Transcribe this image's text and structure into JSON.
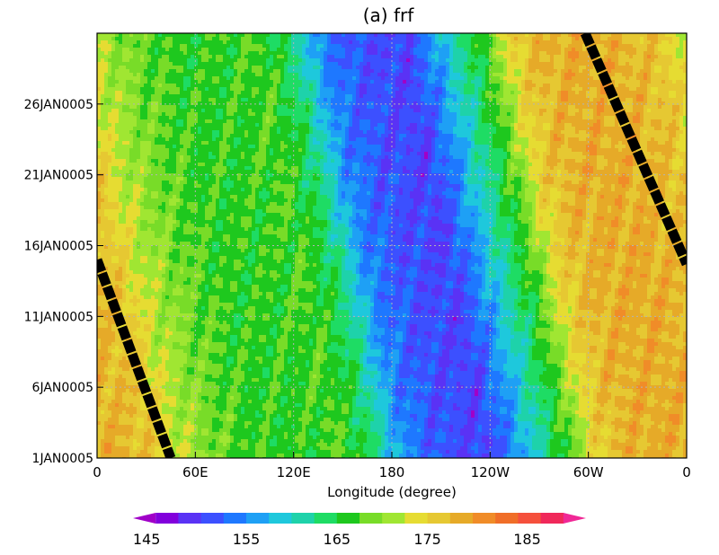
{
  "chart_data": {
    "type": "heatmap",
    "title": "(a) frf",
    "xlabel": "Longitude (degree)",
    "ylabel": "",
    "x_ticks": [
      {
        "lon": 0,
        "label": "0"
      },
      {
        "lon": 60,
        "label": "60E"
      },
      {
        "lon": 120,
        "label": "120E"
      },
      {
        "lon": 180,
        "label": "180"
      },
      {
        "lon": 240,
        "label": "120W"
      },
      {
        "lon": 300,
        "label": "60W"
      },
      {
        "lon": 360,
        "label": "0"
      }
    ],
    "y_ticks": [
      {
        "day": 1,
        "label": "1JAN0005"
      },
      {
        "day": 6,
        "label": "6JAN0005"
      },
      {
        "day": 11,
        "label": "11JAN0005"
      },
      {
        "day": 16,
        "label": "16JAN0005"
      },
      {
        "day": 21,
        "label": "21JAN0005"
      },
      {
        "day": 26,
        "label": "26JAN0005"
      }
    ],
    "xlim": [
      0,
      360
    ],
    "ylim": [
      1,
      31
    ],
    "grid": true,
    "colorbar": {
      "min": 145,
      "max": 185,
      "step": 2.5,
      "tick_labels": [
        "145",
        "155",
        "165",
        "175",
        "185"
      ],
      "tick_values": [
        145,
        155,
        165,
        175,
        185
      ],
      "colors": [
        "#a000c8",
        "#8200dc",
        "#5a32f5",
        "#3c50ff",
        "#1e78ff",
        "#1ea0f5",
        "#1ec8dc",
        "#1ed2aa",
        "#1edc64",
        "#1ec81e",
        "#78dc28",
        "#a0e632",
        "#e6dc32",
        "#e6c832",
        "#e6aa28",
        "#f08c28",
        "#f06e28",
        "#f5503c",
        "#f0285a",
        "#f02896"
      ]
    },
    "profile": [
      {
        "lon": 0,
        "value": 176
      },
      {
        "lon": 20,
        "value": 175
      },
      {
        "lon": 35,
        "value": 174
      },
      {
        "lon": 50,
        "value": 170
      },
      {
        "lon": 75,
        "value": 166
      },
      {
        "lon": 100,
        "value": 164
      },
      {
        "lon": 130,
        "value": 164
      },
      {
        "lon": 150,
        "value": 165
      },
      {
        "lon": 170,
        "value": 161
      },
      {
        "lon": 190,
        "value": 152
      },
      {
        "lon": 210,
        "value": 149
      },
      {
        "lon": 240,
        "value": 147.5
      },
      {
        "lon": 255,
        "value": 152
      },
      {
        "lon": 270,
        "value": 158
      },
      {
        "lon": 290,
        "value": 165
      },
      {
        "lon": 305,
        "value": 172
      },
      {
        "lon": 320,
        "value": 175
      },
      {
        "lon": 340,
        "value": 176
      },
      {
        "lon": 360,
        "value": 176
      }
    ],
    "drift_deg_per_day": 1.8,
    "overlay_lines": [
      {
        "points": [
          [
            0,
            15
          ],
          [
            45,
            1
          ]
        ]
      },
      {
        "points": [
          [
            298,
            31
          ],
          [
            360,
            14.7
          ]
        ]
      }
    ]
  }
}
